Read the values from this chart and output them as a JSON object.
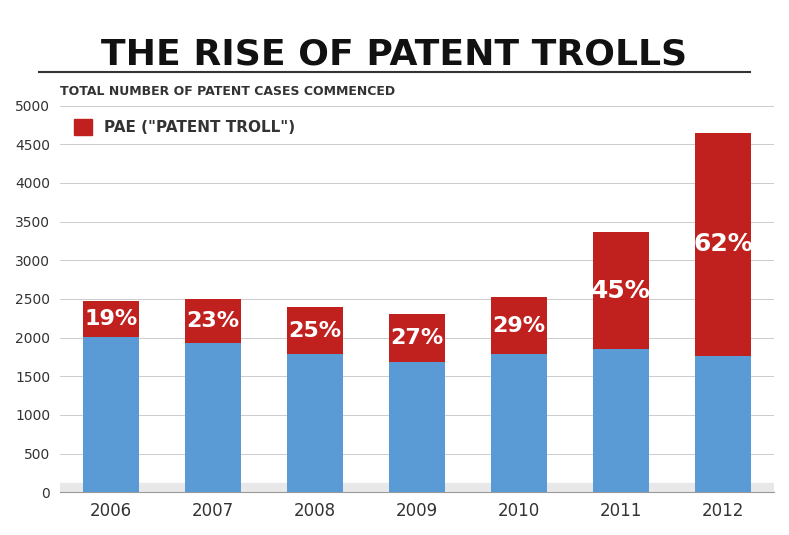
{
  "years": [
    "2006",
    "2007",
    "2008",
    "2009",
    "2010",
    "2011",
    "2012"
  ],
  "total": [
    2470,
    2500,
    2390,
    2310,
    2520,
    3360,
    4650
  ],
  "blue_values": [
    2002,
    1925,
    1793,
    1686,
    1790,
    1848,
    1767
  ],
  "pae_pct": [
    "19%",
    "23%",
    "25%",
    "27%",
    "29%",
    "45%",
    "62%"
  ],
  "blue_color": "#5B9BD5",
  "red_color": "#C0201E",
  "title": "THE RISE OF PATENT TROLLS",
  "subtitle": "TOTAL NUMBER OF PATENT CASES COMMENCED",
  "legend_label": "PAE (\"PATENT TROLL\")",
  "ylim": [
    0,
    5000
  ],
  "yticks": [
    0,
    500,
    1000,
    1500,
    2000,
    2500,
    3000,
    3500,
    4000,
    4500,
    5000
  ],
  "bg_color": "#FFFFFF",
  "bar_bg_color": "#E8E8E8",
  "title_fontsize": 26,
  "subtitle_fontsize": 9,
  "pct_fontsize": 16,
  "legend_fontsize": 11
}
